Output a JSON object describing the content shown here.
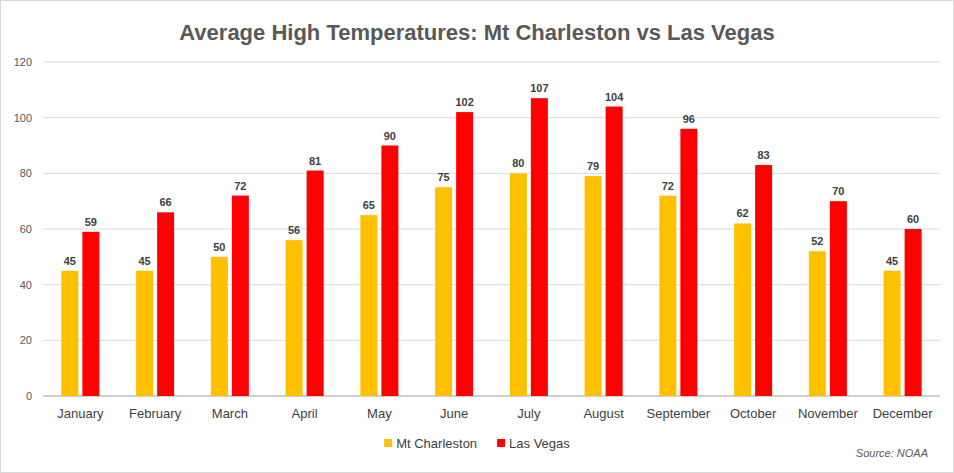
{
  "chart_data": {
    "type": "bar",
    "title": "Average High Temperatures: Mt Charleston vs Las Vegas",
    "categories": [
      "January",
      "February",
      "March",
      "April",
      "May",
      "June",
      "July",
      "August",
      "September",
      "October",
      "November",
      "December"
    ],
    "series": [
      {
        "name": "Mt Charleston",
        "color": "#ffc000",
        "values": [
          45,
          45,
          50,
          56,
          65,
          75,
          80,
          79,
          72,
          62,
          52,
          45
        ]
      },
      {
        "name": "Las Vegas",
        "color": "#ff0000",
        "values": [
          59,
          66,
          72,
          81,
          90,
          102,
          107,
          104,
          96,
          83,
          70,
          60
        ]
      }
    ],
    "ylim": [
      0,
      120
    ],
    "yticks": [
      0,
      20,
      40,
      60,
      80,
      100,
      120
    ],
    "grid": true,
    "legend": "bottom",
    "data_labels": true,
    "annotations": [
      "Source: NOAA"
    ]
  }
}
